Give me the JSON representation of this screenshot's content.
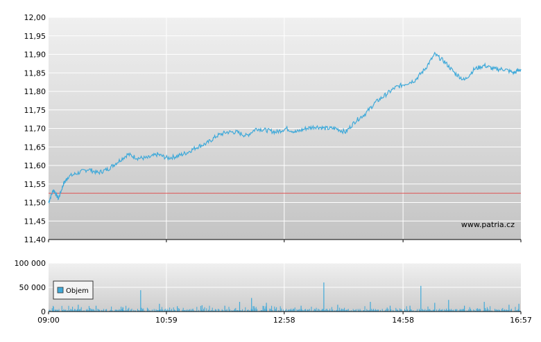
{
  "chart_data": [
    {
      "type": "line",
      "title": "",
      "xlabel": "",
      "ylabel": "",
      "x_ticks": [
        "09:00",
        "10:59",
        "12:58",
        "14:58",
        "16:57"
      ],
      "y_ticks": [
        "11,40",
        "11,45",
        "11,50",
        "11,55",
        "11,60",
        "11,65",
        "11,70",
        "11,75",
        "11,80",
        "11,85",
        "11,90",
        "11,95",
        "12,00"
      ],
      "ylim": [
        11.4,
        12.0
      ],
      "reference_line": 11.525,
      "watermark": "www.patria.cz",
      "grid": true,
      "series": [
        {
          "name": "",
          "x": [
            "09:00",
            "09:05",
            "09:10",
            "09:15",
            "09:20",
            "09:30",
            "09:40",
            "09:50",
            "10:00",
            "10:10",
            "10:20",
            "10:30",
            "10:40",
            "10:50",
            "11:00",
            "11:10",
            "11:20",
            "11:30",
            "11:40",
            "11:50",
            "12:00",
            "12:10",
            "12:20",
            "12:30",
            "12:40",
            "12:50",
            "13:00",
            "13:10",
            "13:20",
            "13:30",
            "13:40",
            "13:50",
            "14:00",
            "14:10",
            "14:20",
            "14:30",
            "14:40",
            "14:50",
            "15:00",
            "15:10",
            "15:20",
            "15:30",
            "15:40",
            "15:50",
            "16:00",
            "16:10",
            "16:20",
            "16:30",
            "16:40",
            "16:50",
            "16:57"
          ],
          "values": [
            11.5,
            11.535,
            11.51,
            11.55,
            11.57,
            11.58,
            11.59,
            11.58,
            11.59,
            11.61,
            11.63,
            11.62,
            11.62,
            11.63,
            11.62,
            11.625,
            11.635,
            11.65,
            11.66,
            11.68,
            11.69,
            11.69,
            11.68,
            11.7,
            11.695,
            11.69,
            11.7,
            11.69,
            11.7,
            11.705,
            11.7,
            11.7,
            11.69,
            11.72,
            11.74,
            11.77,
            11.79,
            11.81,
            11.82,
            11.83,
            11.86,
            11.9,
            11.88,
            11.85,
            11.83,
            11.86,
            11.87,
            11.86,
            11.86,
            11.85,
            11.86
          ]
        }
      ]
    },
    {
      "type": "bar",
      "title": "",
      "xlabel": "",
      "ylabel": "",
      "x_ticks": [
        "09:00",
        "10:59",
        "12:58",
        "14:58",
        "16:57"
      ],
      "y_ticks": [
        "0",
        "50 000",
        "100 000"
      ],
      "ylim": [
        0,
        100000
      ],
      "legend": "Objem",
      "legend_position": "left",
      "spikes": [
        {
          "t": "09:05",
          "v": 10000
        },
        {
          "t": "09:30",
          "v": 14000
        },
        {
          "t": "09:48",
          "v": 12000
        },
        {
          "t": "10:15",
          "v": 9000
        },
        {
          "t": "10:33",
          "v": 44000
        },
        {
          "t": "10:52",
          "v": 16000
        },
        {
          "t": "11:10",
          "v": 11000
        },
        {
          "t": "11:35",
          "v": 13000
        },
        {
          "t": "11:58",
          "v": 12000
        },
        {
          "t": "12:13",
          "v": 20000
        },
        {
          "t": "12:25",
          "v": 28000
        },
        {
          "t": "12:40",
          "v": 18000
        },
        {
          "t": "13:15",
          "v": 12000
        },
        {
          "t": "13:38",
          "v": 60000
        },
        {
          "t": "13:52",
          "v": 14000
        },
        {
          "t": "14:25",
          "v": 20000
        },
        {
          "t": "14:45",
          "v": 12000
        },
        {
          "t": "15:05",
          "v": 12000
        },
        {
          "t": "15:16",
          "v": 53000
        },
        {
          "t": "15:30",
          "v": 18000
        },
        {
          "t": "15:44",
          "v": 24000
        },
        {
          "t": "16:00",
          "v": 12000
        },
        {
          "t": "16:20",
          "v": 20000
        },
        {
          "t": "16:45",
          "v": 14000
        },
        {
          "t": "16:55",
          "v": 16000
        }
      ]
    }
  ]
}
